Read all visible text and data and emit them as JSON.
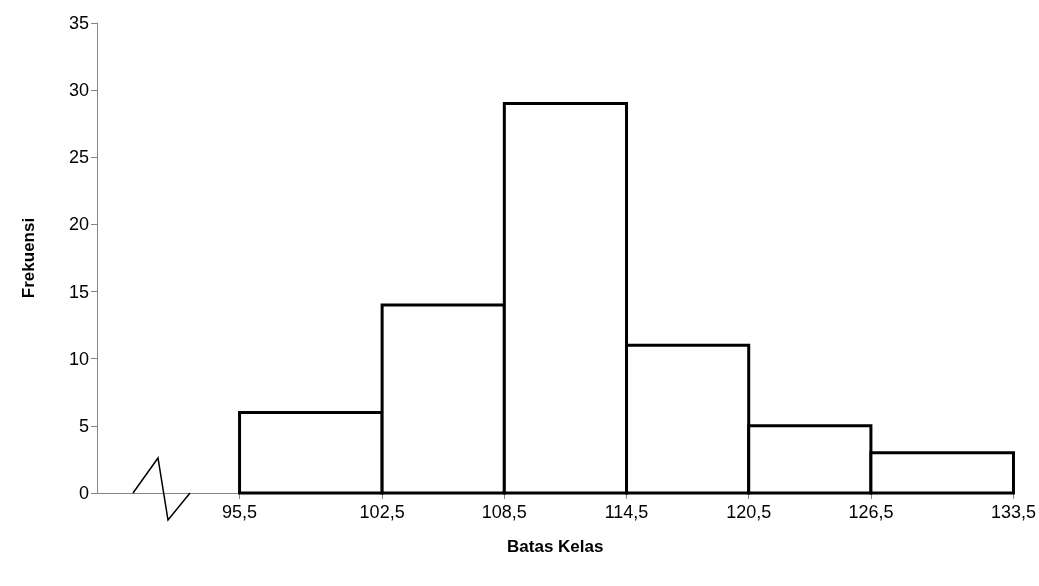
{
  "chart_data": {
    "type": "histogram",
    "xlabel": "Batas Kelas",
    "ylabel": "Frekuensi",
    "bins": [
      95.5,
      102.5,
      108.5,
      114.5,
      120.5,
      126.5,
      133.5
    ],
    "values": [
      6,
      14,
      29,
      11,
      5,
      3
    ],
    "color": "#ffffff",
    "xlim": [
      88.5,
      133.5
    ],
    "xticks": [
      {
        "value": 95.5,
        "label": "95,5"
      },
      {
        "value": 102.5,
        "label": "102,5"
      },
      {
        "value": 108.5,
        "label": "108,5"
      },
      {
        "value": 114.5,
        "label": "114,5"
      },
      {
        "value": 120.5,
        "label": "120,5"
      },
      {
        "value": 126.5,
        "label": "126,5"
      },
      {
        "value": 133.5,
        "label": "133,5"
      }
    ],
    "ylim": [
      0,
      35
    ],
    "yticks": [
      0,
      5,
      10,
      15,
      20,
      25,
      30,
      35
    ],
    "grid": false
  }
}
